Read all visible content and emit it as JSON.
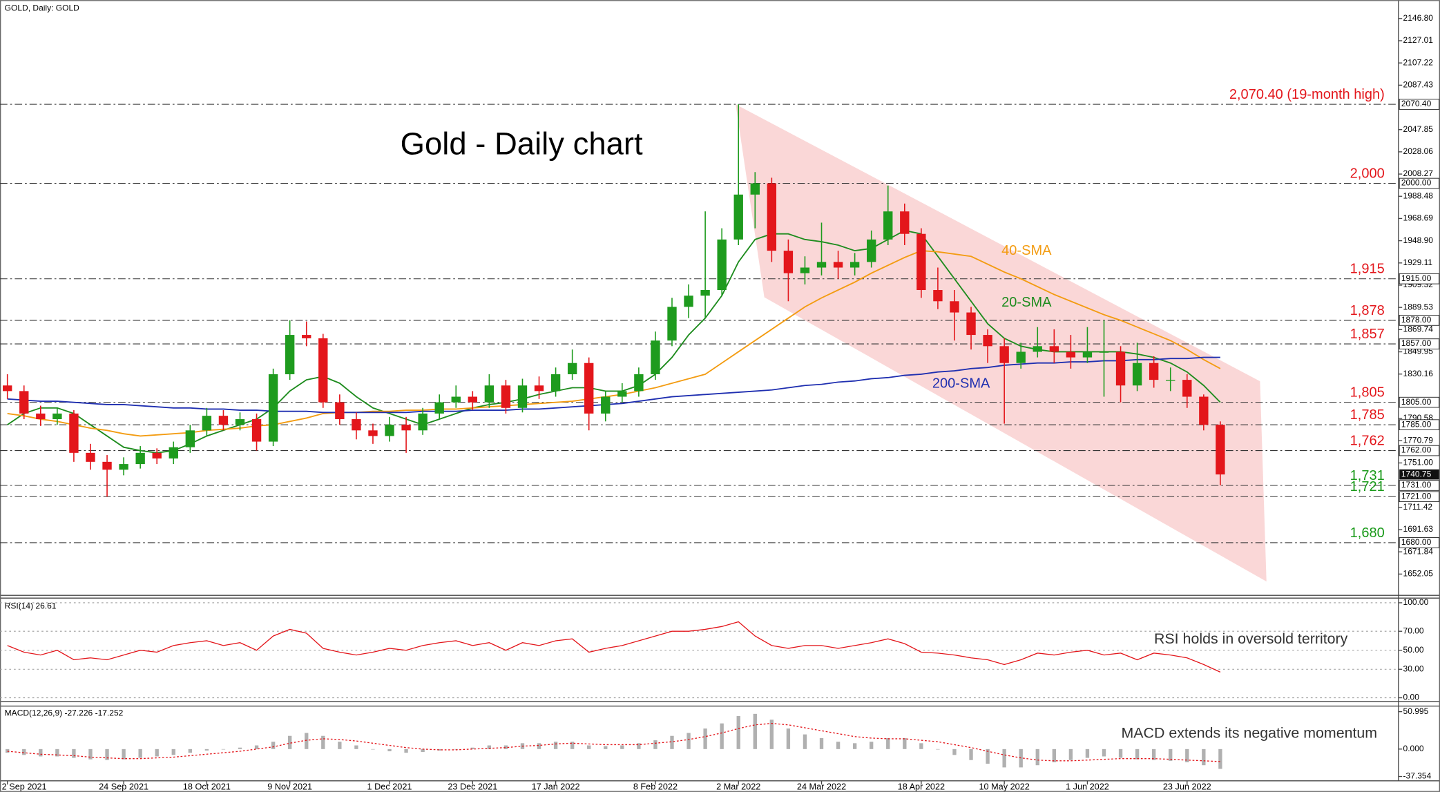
{
  "chart_data": [
    {
      "type": "candlestick",
      "header": "GOLD, Daily:  GOLD",
      "title": "Gold - Daily chart",
      "categories": [
        "2 Sep 2021",
        null,
        null,
        null,
        null,
        null,
        null,
        "24 Sep 2021",
        null,
        null,
        null,
        null,
        "18 Oct 2021",
        null,
        null,
        null,
        null,
        "9 Nov 2021",
        null,
        null,
        null,
        null,
        null,
        "1 Dec 2021",
        null,
        null,
        null,
        null,
        "23 Dec 2021",
        null,
        null,
        null,
        null,
        "17 Jan 2022",
        null,
        null,
        null,
        null,
        null,
        "8 Feb 2022",
        null,
        null,
        null,
        null,
        "2 Mar 2022",
        null,
        null,
        null,
        null,
        "24 Mar 2022",
        null,
        null,
        null,
        null,
        null,
        "18 Apr 2022",
        null,
        null,
        null,
        null,
        "10 May 2022",
        null,
        null,
        null,
        null,
        "1 Jun 2022",
        null,
        null,
        null,
        null,
        null,
        "23 Jun 2022",
        null,
        null
      ],
      "candles": [
        [
          1820,
          1830,
          1808,
          1815
        ],
        [
          1815,
          1820,
          1790,
          1795
        ],
        [
          1795,
          1802,
          1784,
          1790
        ],
        [
          1790,
          1800,
          1785,
          1795
        ],
        [
          1795,
          1798,
          1752,
          1760
        ],
        [
          1760,
          1768,
          1745,
          1752
        ],
        [
          1752,
          1758,
          1721,
          1745
        ],
        [
          1745,
          1756,
          1740,
          1750
        ],
        [
          1750,
          1766,
          1746,
          1760
        ],
        [
          1760,
          1764,
          1750,
          1755
        ],
        [
          1755,
          1770,
          1750,
          1765
        ],
        [
          1765,
          1785,
          1760,
          1780
        ],
        [
          1780,
          1800,
          1775,
          1793
        ],
        [
          1793,
          1798,
          1780,
          1785
        ],
        [
          1785,
          1796,
          1780,
          1790
        ],
        [
          1790,
          1795,
          1762,
          1770
        ],
        [
          1770,
          1835,
          1766,
          1830
        ],
        [
          1830,
          1878,
          1825,
          1865
        ],
        [
          1865,
          1877,
          1855,
          1862
        ],
        [
          1862,
          1866,
          1800,
          1805
        ],
        [
          1805,
          1812,
          1785,
          1790
        ],
        [
          1790,
          1796,
          1772,
          1780
        ],
        [
          1780,
          1786,
          1768,
          1775
        ],
        [
          1775,
          1792,
          1770,
          1785
        ],
        [
          1785,
          1792,
          1760,
          1780
        ],
        [
          1780,
          1800,
          1776,
          1795
        ],
        [
          1795,
          1812,
          1790,
          1805
        ],
        [
          1805,
          1820,
          1800,
          1810
        ],
        [
          1810,
          1815,
          1798,
          1805
        ],
        [
          1805,
          1830,
          1800,
          1820
        ],
        [
          1820,
          1825,
          1795,
          1800
        ],
        [
          1800,
          1826,
          1796,
          1820
        ],
        [
          1820,
          1828,
          1808,
          1815
        ],
        [
          1815,
          1836,
          1810,
          1830
        ],
        [
          1830,
          1852,
          1825,
          1840
        ],
        [
          1840,
          1845,
          1780,
          1795
        ],
        [
          1795,
          1815,
          1788,
          1810
        ],
        [
          1810,
          1822,
          1805,
          1815
        ],
        [
          1815,
          1836,
          1810,
          1830
        ],
        [
          1830,
          1868,
          1825,
          1860
        ],
        [
          1860,
          1898,
          1855,
          1890
        ],
        [
          1890,
          1910,
          1880,
          1900
        ],
        [
          1900,
          1975,
          1880,
          1905
        ],
        [
          1905,
          1960,
          1900,
          1950
        ],
        [
          1950,
          2070.4,
          1945,
          1990
        ],
        [
          1990,
          2010,
          1960,
          2000
        ],
        [
          2000,
          2005,
          1930,
          1940
        ],
        [
          1940,
          1950,
          1895,
          1920
        ],
        [
          1920,
          1935,
          1910,
          1925
        ],
        [
          1925,
          1965,
          1918,
          1930
        ],
        [
          1930,
          1940,
          1915,
          1925
        ],
        [
          1925,
          1938,
          1918,
          1930
        ],
        [
          1930,
          1958,
          1925,
          1950
        ],
        [
          1950,
          1998,
          1945,
          1975
        ],
        [
          1975,
          1982,
          1945,
          1955
        ],
        [
          1955,
          1960,
          1898,
          1905
        ],
        [
          1905,
          1925,
          1888,
          1895
        ],
        [
          1895,
          1905,
          1860,
          1885
        ],
        [
          1885,
          1890,
          1852,
          1865
        ],
        [
          1865,
          1870,
          1840,
          1855
        ],
        [
          1855,
          1862,
          1786,
          1840
        ],
        [
          1840,
          1858,
          1835,
          1850
        ],
        [
          1850,
          1872,
          1845,
          1855
        ],
        [
          1855,
          1870,
          1840,
          1850
        ],
        [
          1850,
          1865,
          1835,
          1845
        ],
        [
          1845,
          1872,
          1840,
          1850
        ],
        [
          1850,
          1878,
          1810,
          1850
        ],
        [
          1850,
          1855,
          1805,
          1820
        ],
        [
          1820,
          1858,
          1815,
          1840
        ],
        [
          1840,
          1846,
          1818,
          1825
        ],
        [
          1825,
          1836,
          1815,
          1825
        ],
        [
          1825,
          1830,
          1800,
          1810
        ],
        [
          1810,
          1812,
          1780,
          1785
        ],
        [
          1785,
          1788,
          1731,
          1740.75
        ]
      ],
      "up_color": "#1e9b1e",
      "down_color": "#e3161b",
      "series": [
        {
          "name": "20-SMA",
          "color": "#1e8c1e",
          "values": [
            1785,
            1795,
            1800,
            1800,
            1795,
            1785,
            1775,
            1765,
            1762,
            1760,
            1762,
            1768,
            1775,
            1780,
            1785,
            1790,
            1800,
            1815,
            1825,
            1828,
            1822,
            1810,
            1800,
            1795,
            1790,
            1785,
            1790,
            1795,
            1800,
            1803,
            1805,
            1808,
            1812,
            1815,
            1818,
            1818,
            1815,
            1815,
            1820,
            1830,
            1845,
            1865,
            1880,
            1900,
            1930,
            1950,
            1955,
            1955,
            1950,
            1948,
            1945,
            1940,
            1942,
            1950,
            1958,
            1955,
            1935,
            1915,
            1895,
            1875,
            1862,
            1855,
            1852,
            1850,
            1850,
            1850,
            1850,
            1850,
            1848,
            1845,
            1840,
            1832,
            1820,
            1805
          ]
        },
        {
          "name": "40-SMA",
          "color": "#f39c12",
          "values": [
            1795,
            1793,
            1790,
            1788,
            1785,
            1782,
            1780,
            1777,
            1775,
            1776,
            1777,
            1778,
            1780,
            1781,
            1782,
            1784,
            1785,
            1788,
            1791,
            1795,
            1796,
            1796,
            1797,
            1797,
            1798,
            1798,
            1799,
            1799,
            1800,
            1801,
            1802,
            1803,
            1804,
            1805,
            1806,
            1808,
            1810,
            1812,
            1815,
            1818,
            1822,
            1826,
            1830,
            1840,
            1850,
            1860,
            1870,
            1880,
            1890,
            1898,
            1905,
            1912,
            1920,
            1927,
            1934,
            1940,
            1939,
            1937,
            1935,
            1928,
            1921,
            1915,
            1908,
            1901,
            1895,
            1889,
            1883,
            1878,
            1872,
            1866,
            1860,
            1852,
            1843,
            1835
          ]
        },
        {
          "name": "200-SMA",
          "color": "#1f2fb0",
          "values": [
            1808,
            1807,
            1806,
            1806,
            1805,
            1804,
            1803,
            1803,
            1802,
            1801,
            1800,
            1800,
            1799,
            1799,
            1798,
            1798,
            1797,
            1797,
            1797,
            1796,
            1796,
            1796,
            1796,
            1796,
            1796,
            1797,
            1797,
            1797,
            1798,
            1798,
            1798,
            1799,
            1799,
            1800,
            1801,
            1802,
            1803,
            1804,
            1806,
            1808,
            1810,
            1811,
            1812,
            1813,
            1814,
            1815,
            1816,
            1818,
            1820,
            1821,
            1823,
            1824,
            1826,
            1827,
            1829,
            1830,
            1832,
            1833,
            1835,
            1836,
            1838,
            1839,
            1840,
            1840,
            1841,
            1841,
            1842,
            1842,
            1843,
            1843,
            1844,
            1844,
            1845,
            1845
          ]
        }
      ],
      "levels": [
        {
          "value": 2070.4,
          "label": "2,070.40 (19-month high)",
          "tag": "2070.40",
          "color": "#e3161b"
        },
        {
          "value": 2000,
          "label": "2,000",
          "tag": "2000.00",
          "color": "#e3161b"
        },
        {
          "value": 1915,
          "label": "1,915",
          "tag": "1915.00",
          "color": "#e3161b"
        },
        {
          "value": 1878,
          "label": "1,878",
          "tag": "1878.00",
          "color": "#e3161b"
        },
        {
          "value": 1857,
          "label": "1,857",
          "tag": "1857.00",
          "color": "#e3161b"
        },
        {
          "value": 1805,
          "label": "1,805",
          "tag": "1805.00",
          "color": "#e3161b"
        },
        {
          "value": 1785,
          "label": "1,785",
          "tag": "1785.00",
          "color": "#e3161b"
        },
        {
          "value": 1762,
          "label": "1,762",
          "tag": "1762.00",
          "color": "#e3161b"
        },
        {
          "value": 1731,
          "label": "1,731",
          "tag": "1731.00",
          "color": "#1a9a1a"
        },
        {
          "value": 1721,
          "label": "1,721",
          "tag": "1721.00",
          "color": "#1a9a1a"
        },
        {
          "value": 1680,
          "label": "1,680",
          "tag": "1680.00",
          "color": "#1a9a1a"
        }
      ],
      "last_price": {
        "value": 1740.75,
        "label": "1740.75"
      },
      "ylim": [
        1633.1,
        2163.2
      ],
      "yticks": [
        {
          "value": 2146.8,
          "label": "2146.80"
        },
        {
          "value": 2127.01,
          "label": "2127.01"
        },
        {
          "value": 2107.22,
          "label": "2107.22"
        },
        {
          "value": 2087.43,
          "label": "2087.43"
        },
        {
          "value": 2047.85,
          "label": "2047.85"
        },
        {
          "value": 2028.06,
          "label": "2028.06"
        },
        {
          "value": 2008.27,
          "label": "2008.27"
        },
        {
          "value": 1988.48,
          "label": "1988.48"
        },
        {
          "value": 1968.69,
          "label": "1968.69"
        },
        {
          "value": 1948.9,
          "label": "1948.90"
        },
        {
          "value": 1929.11,
          "label": "1929.11"
        },
        {
          "value": 1909.32,
          "label": "1909.32"
        },
        {
          "value": 1889.53,
          "label": "1889.53"
        },
        {
          "value": 1869.74,
          "label": "1869.74"
        },
        {
          "value": 1849.95,
          "label": "1849.95"
        },
        {
          "value": 1830.16,
          "label": "1830.16"
        },
        {
          "value": 1790.58,
          "label": "1790.58"
        },
        {
          "value": 1770.79,
          "label": "1770.79"
        },
        {
          "value": 1751,
          "label": "1751.00"
        },
        {
          "value": 1711.42,
          "label": "1711.42"
        },
        {
          "value": 1691.63,
          "label": "1691.63"
        },
        {
          "value": 1671.84,
          "label": "1671.84"
        },
        {
          "value": 1652.05,
          "label": "1652.05"
        }
      ]
    },
    {
      "type": "line",
      "title": "RSI(14) 26.61",
      "annotation": "RSI holds in oversold territory",
      "color": "#e3161b",
      "values": [
        55,
        48,
        45,
        50,
        40,
        42,
        40,
        45,
        50,
        48,
        55,
        58,
        60,
        55,
        58,
        50,
        65,
        72,
        68,
        52,
        48,
        45,
        48,
        52,
        50,
        55,
        58,
        60,
        55,
        58,
        50,
        58,
        55,
        60,
        62,
        48,
        52,
        55,
        60,
        65,
        70,
        70,
        72,
        75,
        80,
        65,
        55,
        52,
        55,
        55,
        52,
        55,
        58,
        62,
        57,
        48,
        47,
        45,
        42,
        40,
        35,
        40,
        47,
        45,
        48,
        50,
        45,
        47,
        40,
        47,
        45,
        42,
        35,
        27
      ],
      "ylim": [
        -3.9,
        104.9
      ],
      "grid": true,
      "yticks": [
        {
          "value": 100,
          "label": "100.00"
        },
        {
          "value": 70,
          "label": "70.00"
        },
        {
          "value": 50,
          "label": "50.00"
        },
        {
          "value": 30,
          "label": "30.00"
        },
        {
          "value": 0,
          "label": "0.00"
        }
      ]
    },
    {
      "type": "macd",
      "title": "MACD(12,26,9) -27.226 -17.252",
      "annotation": "MACD extends its negative momentum",
      "histogram_color": "#b0b0b0",
      "signal_color": "#e3161b",
      "histogram": [
        -5,
        -8,
        -10,
        -10,
        -12,
        -14,
        -15,
        -14,
        -12,
        -10,
        -8,
        -5,
        -2,
        0,
        2,
        5,
        10,
        18,
        22,
        18,
        10,
        5,
        0,
        -3,
        -5,
        -4,
        -2,
        0,
        2,
        5,
        5,
        8,
        8,
        10,
        10,
        5,
        4,
        5,
        8,
        12,
        18,
        22,
        28,
        35,
        45,
        48,
        40,
        28,
        20,
        15,
        10,
        8,
        10,
        15,
        15,
        8,
        0,
        -8,
        -15,
        -20,
        -25,
        -25,
        -22,
        -18,
        -15,
        -12,
        -10,
        -12,
        -14,
        -15,
        -16,
        -18,
        -22,
        -27
      ],
      "signal": [
        -3,
        -5,
        -7,
        -8,
        -9,
        -11,
        -12,
        -13,
        -13,
        -12,
        -11,
        -9,
        -7,
        -5,
        -3,
        0,
        3,
        8,
        12,
        14,
        13,
        11,
        8,
        5,
        2,
        0,
        -1,
        -1,
        0,
        1,
        2,
        4,
        5,
        7,
        8,
        7,
        6,
        6,
        6,
        8,
        10,
        13,
        17,
        22,
        28,
        33,
        35,
        33,
        29,
        25,
        21,
        17,
        15,
        14,
        14,
        12,
        10,
        6,
        2,
        -3,
        -8,
        -12,
        -15,
        -16,
        -16,
        -15,
        -14,
        -13,
        -13,
        -13,
        -14,
        -15,
        -16,
        -17
      ],
      "ylim": [
        -43.3,
        58.6
      ],
      "yticks": [
        {
          "value": 50.995,
          "label": "50.995"
        },
        {
          "value": 0,
          "label": "0.000"
        },
        {
          "value": -37.354,
          "label": "-37.354"
        }
      ]
    }
  ]
}
